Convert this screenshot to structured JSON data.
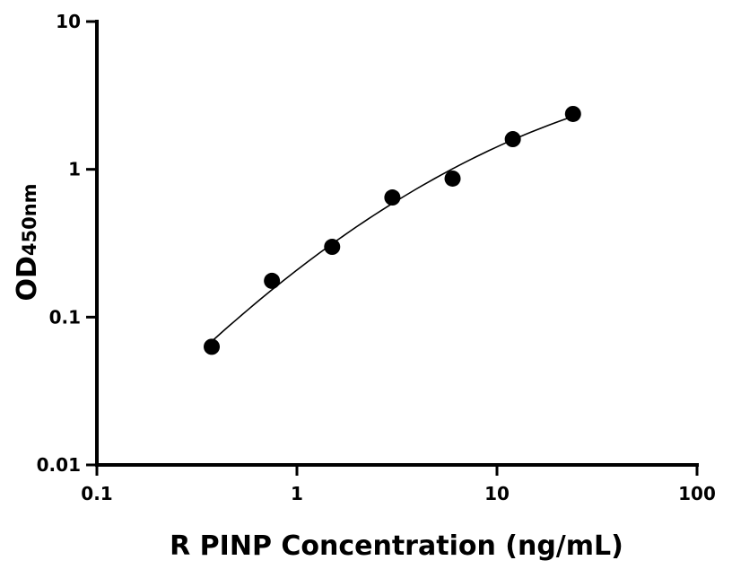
{
  "chart_data": {
    "type": "scatter",
    "title": "",
    "xlabel": "R PINP Concentration (ng/mL)",
    "ylabel": "OD",
    "ylabel_subscript": "450nm",
    "x_scale": "log",
    "y_scale": "log",
    "xlim": [
      0.1,
      100
    ],
    "ylim": [
      0.01,
      10
    ],
    "x_ticks": [
      "0.1",
      "1",
      "10",
      "100"
    ],
    "y_ticks": [
      "0.01",
      "0.1",
      "1",
      "10"
    ],
    "x_tick_values": [
      0.1,
      1,
      10,
      100
    ],
    "y_tick_values": [
      0.01,
      0.1,
      1,
      10
    ],
    "grid": false,
    "fit_curve": true,
    "series": [
      {
        "x": [
          0.375,
          0.75,
          1.5,
          3,
          6,
          12,
          24
        ],
        "y": [
          0.063,
          0.176,
          0.299,
          0.645,
          0.866,
          1.6,
          2.37
        ]
      }
    ],
    "colors": {
      "points": "#000000",
      "curve": "#000000"
    }
  }
}
